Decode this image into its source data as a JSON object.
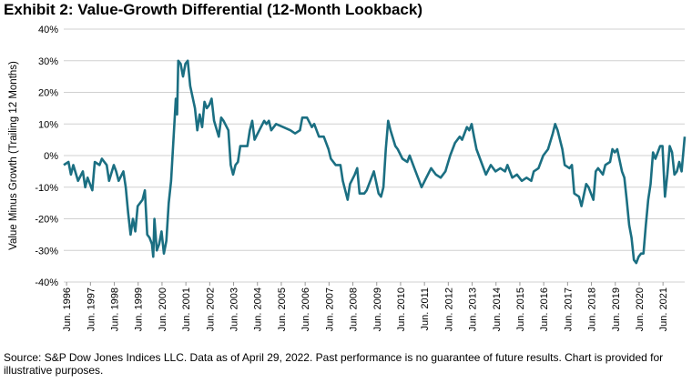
{
  "chart_data": {
    "type": "line",
    "title": "Exhibit 2: Value-Growth Differential (12-Month Lookback)",
    "y_label": "Value Minus Growth (Trailing 12 Months)",
    "source": "Source: S&P Dow Jones Indices LLC. Data as of April 29, 2022. Past performance is no guarantee of future results. Chart is provided for illustrative purposes.",
    "color": "#1b6f82",
    "grid": true,
    "xlim": [
      1996.3,
      2022.33
    ],
    "ylim": [
      -40,
      40
    ],
    "yticks": [
      {
        "value": -40,
        "label": "-40%"
      },
      {
        "value": -30,
        "label": "-30%"
      },
      {
        "value": -20,
        "label": "-20%"
      },
      {
        "value": -10,
        "label": "-10%"
      },
      {
        "value": 0,
        "label": "0%"
      },
      {
        "value": 10,
        "label": "10%"
      },
      {
        "value": 20,
        "label": "20%"
      },
      {
        "value": 30,
        "label": "30%"
      },
      {
        "value": 40,
        "label": "40%"
      }
    ],
    "xticks": [
      {
        "value": 1996.42,
        "label": "Jun. 1996"
      },
      {
        "value": 1997.42,
        "label": "Jun. 1997"
      },
      {
        "value": 1998.42,
        "label": "Jun. 1998"
      },
      {
        "value": 1999.42,
        "label": "Jun. 1999"
      },
      {
        "value": 2000.42,
        "label": "Jun. 2000"
      },
      {
        "value": 2001.42,
        "label": "Jun. 2001"
      },
      {
        "value": 2002.42,
        "label": "Jun. 2002"
      },
      {
        "value": 2003.42,
        "label": "Jun. 2003"
      },
      {
        "value": 2004.42,
        "label": "Jun. 2004"
      },
      {
        "value": 2005.42,
        "label": "Jun. 2005"
      },
      {
        "value": 2006.42,
        "label": "Jun. 2006"
      },
      {
        "value": 2007.42,
        "label": "Jun. 2007"
      },
      {
        "value": 2008.42,
        "label": "Jun. 2008"
      },
      {
        "value": 2009.42,
        "label": "Jun. 2009"
      },
      {
        "value": 2010.42,
        "label": "Jun. 2010"
      },
      {
        "value": 2011.42,
        "label": "Jun. 2011"
      },
      {
        "value": 2012.42,
        "label": "Jun. 2012"
      },
      {
        "value": 2013.42,
        "label": "Jun. 2013"
      },
      {
        "value": 2014.42,
        "label": "Jun. 2014"
      },
      {
        "value": 2015.42,
        "label": "Jun. 2015"
      },
      {
        "value": 2016.42,
        "label": "Jun. 2016"
      },
      {
        "value": 2017.42,
        "label": "Jun. 2017"
      },
      {
        "value": 2018.42,
        "label": "Jun. 2018"
      },
      {
        "value": 2019.42,
        "label": "Jun. 2019"
      },
      {
        "value": 2020.42,
        "label": "Jun. 2020"
      },
      {
        "value": 2021.42,
        "label": "Jun. 2021"
      }
    ],
    "x": [
      1996.3,
      1996.5,
      1996.6,
      1996.7,
      1996.9,
      1997.1,
      1997.2,
      1997.3,
      1997.5,
      1997.6,
      1997.8,
      1997.9,
      1998.1,
      1998.2,
      1998.4,
      1998.5,
      1998.6,
      1998.8,
      1998.9,
      1999.0,
      1999.1,
      1999.2,
      1999.3,
      1999.4,
      1999.6,
      1999.7,
      1999.8,
      1999.9,
      2000.0,
      2000.05,
      2000.1,
      2000.2,
      2000.3,
      2000.4,
      2000.5,
      2000.6,
      2000.7,
      2000.8,
      2000.9,
      2001.0,
      2001.05,
      2001.1,
      2001.2,
      2001.3,
      2001.4,
      2001.5,
      2001.6,
      2001.8,
      2001.9,
      2002.0,
      2002.1,
      2002.2,
      2002.3,
      2002.4,
      2002.5,
      2002.6,
      2002.8,
      2002.9,
      2003.0,
      2003.2,
      2003.3,
      2003.4,
      2003.5,
      2003.6,
      2003.7,
      2004.0,
      2004.1,
      2004.2,
      2004.3,
      2004.5,
      2004.7,
      2004.8,
      2004.9,
      2005.0,
      2005.2,
      2005.5,
      2005.8,
      2006.0,
      2006.2,
      2006.3,
      2006.5,
      2006.7,
      2006.8,
      2007.0,
      2007.2,
      2007.4,
      2007.5,
      2007.7,
      2007.9,
      2008.0,
      2008.2,
      2008.3,
      2008.5,
      2008.6,
      2008.7,
      2008.9,
      2009.0,
      2009.2,
      2009.3,
      2009.5,
      2009.6,
      2009.7,
      2009.8,
      2009.9,
      2010.0,
      2010.2,
      2010.3,
      2010.5,
      2010.7,
      2010.8,
      2011.0,
      2011.2,
      2011.3,
      2011.5,
      2011.7,
      2011.9,
      2012.1,
      2012.3,
      2012.5,
      2012.7,
      2012.9,
      2013.0,
      2013.2,
      2013.3,
      2013.4,
      2013.5,
      2013.6,
      2013.8,
      2014.0,
      2014.2,
      2014.4,
      2014.6,
      2014.8,
      2014.9,
      2015.1,
      2015.3,
      2015.5,
      2015.7,
      2015.9,
      2016.0,
      2016.2,
      2016.4,
      2016.6,
      2016.8,
      2016.9,
      2017.0,
      2017.2,
      2017.3,
      2017.5,
      2017.6,
      2017.7,
      2017.9,
      2018.0,
      2018.2,
      2018.3,
      2018.5,
      2018.6,
      2018.7,
      2018.9,
      2019.0,
      2019.2,
      2019.3,
      2019.4,
      2019.5,
      2019.7,
      2019.8,
      2019.9,
      2020.0,
      2020.1,
      2020.2,
      2020.3,
      2020.4,
      2020.5,
      2020.6,
      2020.7,
      2020.8,
      2020.9,
      2021.0,
      2021.1,
      2021.3,
      2021.4,
      2021.5,
      2021.6,
      2021.7,
      2021.8,
      2021.9,
      2022.0,
      2022.1,
      2022.2,
      2022.33
    ],
    "values": [
      -3,
      -2,
      -6,
      -3,
      -8,
      -5,
      -10,
      -7,
      -11,
      -2,
      -3,
      -1,
      -3,
      -8,
      -3,
      -5,
      -8,
      -5,
      -10,
      -18,
      -25,
      -20,
      -24,
      -16,
      -14,
      -11,
      -25,
      -26,
      -28,
      -32,
      -20,
      -30,
      -28,
      -24,
      -31,
      -27,
      -15,
      -8,
      5,
      18,
      13,
      30,
      29,
      25,
      29,
      30,
      22,
      15,
      8,
      13,
      9,
      17,
      15,
      16,
      18,
      11,
      6,
      12,
      11,
      8,
      -3,
      -6,
      -3,
      -2,
      3,
      3,
      8,
      11,
      5,
      8,
      11,
      10,
      11,
      8,
      10,
      9,
      8,
      7,
      8,
      12,
      12,
      9,
      10,
      6,
      6,
      2,
      -1,
      -3,
      -3,
      -8,
      -14,
      -9,
      -6,
      -4,
      -12,
      -12,
      -11,
      -7,
      -5,
      -12,
      -13,
      -10,
      2,
      11,
      8,
      3,
      2,
      -1,
      -2,
      0,
      -4,
      -8,
      -10,
      -7,
      -4,
      -6,
      -7,
      -5,
      0,
      4,
      6,
      5,
      9,
      8,
      10,
      6,
      2,
      -2,
      -6,
      -3,
      -5,
      -4,
      -5,
      -3,
      -7,
      -6,
      -8,
      -7,
      -8,
      -5,
      -4,
      0,
      2,
      7,
      10,
      8,
      2,
      -3,
      -4,
      -3,
      -12,
      -13,
      -16,
      -9,
      -10,
      -14,
      -5,
      -4,
      -6,
      -3,
      -2,
      2,
      1,
      2,
      -5,
      -7,
      -14,
      -22,
      -26,
      -33,
      -34,
      -32,
      -31,
      -31,
      -22,
      -14,
      -9,
      1,
      -1,
      3,
      3,
      -13,
      -6,
      3,
      1,
      -6,
      -5,
      -2,
      -5,
      6
    ]
  }
}
